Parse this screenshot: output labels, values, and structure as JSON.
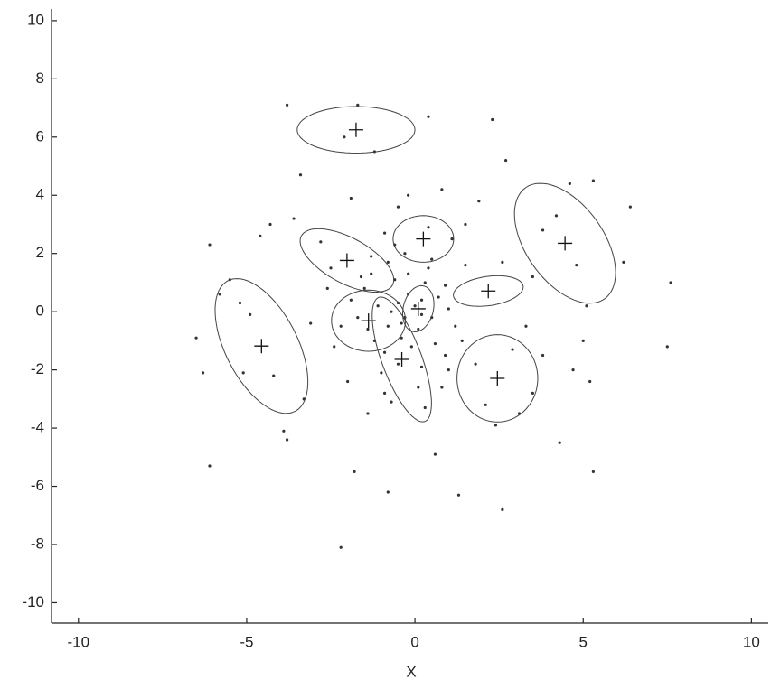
{
  "chart_data": {
    "type": "scatter",
    "x_label": "X",
    "xlim": [
      -10.8,
      10.5
    ],
    "ylim": [
      -10.7,
      10.4
    ],
    "xticks": [
      -10,
      -5,
      0,
      5,
      10
    ],
    "yticks": [
      -10,
      -8,
      -6,
      -4,
      -2,
      0,
      2,
      4,
      6,
      8,
      10
    ],
    "grid": false,
    "color": "#333333",
    "points": {
      "x": [
        -6.1,
        -6.3,
        -6.1,
        -6.5,
        -5.8,
        -3.8,
        -2.2,
        -1.8,
        -0.8,
        1.3,
        0.6,
        2.6,
        5.3,
        4.3,
        6.2,
        7.6,
        7.5,
        6.4,
        5.3,
        4.6,
        2.7,
        2.3,
        0.4,
        -1.7,
        -3.8,
        -3.4,
        -1.2,
        -2.1,
        -4.6,
        -4.3,
        -3.6,
        -5.5,
        -4.9,
        -4.2,
        -3.3,
        -3.9,
        -5.1,
        -5.2,
        4.2,
        4.8,
        5.1,
        3.8,
        5.0,
        4.7,
        5.2,
        3.8,
        3.5,
        3.1,
        2.1,
        1.8,
        2.9,
        2.4,
        3.3,
        3.5,
        2.6,
        1.5,
        1.9,
        0.8,
        -0.5,
        -0.2,
        -1.9,
        -2.8,
        -1.3,
        -2.6,
        -3.1,
        -2.4,
        -2.0,
        -1.4,
        -0.7,
        0.3,
        0.8,
        1.4,
        1.0,
        0.9,
        1.5,
        0.5,
        -0.3,
        0.4,
        -0.9,
        1.1,
        -0.5,
        -0.2,
        0.2,
        0.5,
        -0.8,
        -1.1,
        -0.4,
        0.1,
        0.3,
        -0.6,
        -1.5,
        -1.7,
        -1.2,
        -0.9,
        -0.1,
        0.6,
        0.7,
        1.0,
        -0.3,
        0.0,
        -0.7,
        -1.4,
        -1.9,
        -2.2,
        -0.5,
        0.2,
        -1.0,
        0.4,
        -0.8,
        -1.3,
        1.2,
        0.9,
        -0.2,
        -0.4,
        0.2,
        -1.6,
        -2.5,
        -0.6,
        0.1,
        -0.9
      ],
      "y": [
        2.3,
        -2.1,
        -5.3,
        -0.9,
        0.6,
        -4.4,
        -8.1,
        -5.5,
        -6.2,
        -6.3,
        -4.9,
        -6.8,
        -5.5,
        -4.5,
        1.7,
        1.0,
        -1.2,
        3.6,
        4.5,
        4.4,
        5.2,
        6.6,
        6.7,
        7.1,
        7.1,
        4.7,
        5.5,
        6.0,
        2.6,
        3.0,
        3.2,
        1.1,
        -0.1,
        -2.2,
        -3.0,
        -4.1,
        -2.1,
        0.3,
        3.3,
        1.6,
        0.2,
        2.8,
        -1.0,
        -2.0,
        -2.4,
        -1.5,
        -2.8,
        -3.5,
        -3.2,
        -1.8,
        -1.3,
        -3.9,
        -0.5,
        1.2,
        1.7,
        3.0,
        3.8,
        4.2,
        3.6,
        4.0,
        3.9,
        2.4,
        1.3,
        0.8,
        -0.4,
        -1.2,
        -2.4,
        -3.5,
        -3.1,
        -3.3,
        -2.6,
        -1.0,
        -2.0,
        0.9,
        1.6,
        1.8,
        2.0,
        2.9,
        2.7,
        2.5,
        0.3,
        0.6,
        0.4,
        -0.2,
        -0.5,
        0.2,
        -0.9,
        -0.6,
        1.0,
        1.1,
        0.8,
        -0.2,
        -1.0,
        -1.4,
        -1.2,
        -1.1,
        0.5,
        0.1,
        -0.2,
        0.2,
        0.0,
        -0.6,
        0.4,
        -0.5,
        -1.8,
        -1.9,
        -2.1,
        1.5,
        1.7,
        1.9,
        -0.5,
        -1.5,
        1.3,
        -0.4,
        -0.1,
        1.2,
        1.5,
        2.3,
        -2.6,
        -2.8
      ]
    },
    "ellipses": [
      {
        "cx": -1.75,
        "cy": 6.25,
        "a": 1.75,
        "b": 0.8,
        "angle": 0
      },
      {
        "cx": 4.46,
        "cy": 2.35,
        "a": 2.25,
        "b": 1.2,
        "angle": -61.6
      },
      {
        "cx": -4.56,
        "cy": -1.18,
        "a": 2.46,
        "b": 1.1,
        "angle": -67.8
      },
      {
        "cx": -2.02,
        "cy": 1.76,
        "a": 1.6,
        "b": 0.75,
        "angle": -34
      },
      {
        "cx": 0.25,
        "cy": 2.5,
        "a": 0.9,
        "b": 0.8,
        "angle": 0
      },
      {
        "cx": 2.18,
        "cy": 0.71,
        "a": 1.05,
        "b": 0.5,
        "angle": 10
      },
      {
        "cx": -1.38,
        "cy": -0.31,
        "a": 1.1,
        "b": 1.05,
        "angle": 0
      },
      {
        "cx": -0.39,
        "cy": -1.64,
        "a": 2.24,
        "b": 0.6,
        "angle": -72.6
      },
      {
        "cx": 2.45,
        "cy": -2.29,
        "a": 1.2,
        "b": 1.5,
        "angle": 0
      },
      {
        "cx": 0.1,
        "cy": 0.1,
        "a": 0.8,
        "b": 0.45,
        "angle": 80
      }
    ]
  }
}
